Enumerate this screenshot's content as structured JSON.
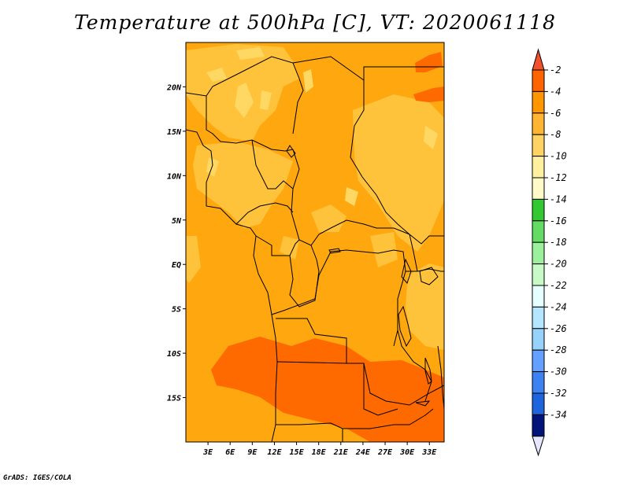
{
  "title": "Temperature at 500hPa [C], VT: 2020061118",
  "footer": "GrADS: IGES/COLA",
  "map": {
    "lon_range": [
      0,
      35
    ],
    "lat_range": [
      -20,
      25
    ],
    "lat_labels": [
      {
        "lat": 20,
        "label": "20N"
      },
      {
        "lat": 15,
        "label": "15N"
      },
      {
        "lat": 10,
        "label": "10N"
      },
      {
        "lat": 5,
        "label": "5N"
      },
      {
        "lat": 0,
        "label": "EQ"
      },
      {
        "lat": -5,
        "label": "5S"
      },
      {
        "lat": -10,
        "label": "10S"
      },
      {
        "lat": -15,
        "label": "15S"
      }
    ],
    "lon_labels": [
      {
        "lon": 3,
        "label": "3E"
      },
      {
        "lon": 6,
        "label": "6E"
      },
      {
        "lon": 9,
        "label": "9E"
      },
      {
        "lon": 12,
        "label": "12E"
      },
      {
        "lon": 15,
        "label": "15E"
      },
      {
        "lon": 18,
        "label": "18E"
      },
      {
        "lon": 21,
        "label": "21E"
      },
      {
        "lon": 24,
        "label": "24E"
      },
      {
        "lon": 27,
        "label": "27E"
      },
      {
        "lon": 30,
        "label": "30E"
      },
      {
        "lon": 33,
        "label": "33E"
      }
    ]
  },
  "colorbar": {
    "levels": [
      {
        "value": "-2",
        "color": "#ff6400"
      },
      {
        "value": "-4",
        "color": "#ff9600"
      },
      {
        "value": "-6",
        "color": "#ffb432"
      },
      {
        "value": "-8",
        "color": "#ffd264"
      },
      {
        "value": "-10",
        "color": "#fff0a0"
      },
      {
        "value": "-12",
        "color": "#fffac8"
      },
      {
        "value": "-14",
        "color": "#32c832"
      },
      {
        "value": "-16",
        "color": "#64dc64"
      },
      {
        "value": "-18",
        "color": "#9bf09b"
      },
      {
        "value": "-20",
        "color": "#c8fac8"
      },
      {
        "value": "-22",
        "color": "#e6ffff"
      },
      {
        "value": "-24",
        "color": "#b4e6ff"
      },
      {
        "value": "-26",
        "color": "#96d2fa"
      },
      {
        "value": "-28",
        "color": "#64a0ff"
      },
      {
        "value": "-30",
        "color": "#3c82f0"
      },
      {
        "value": "-32",
        "color": "#1e64dc"
      },
      {
        "value": "-34",
        "color": "#1450c8"
      }
    ],
    "top_arrow_color": "#f0502a",
    "bottom_arrow_color": "#e6e6ff",
    "deep_color": "#00147a"
  },
  "fields": {
    "base_color": "#ffa70f",
    "light_color": "#ffc23b",
    "pale_color": "#ffd864",
    "warm_color": "#ff6a00"
  }
}
